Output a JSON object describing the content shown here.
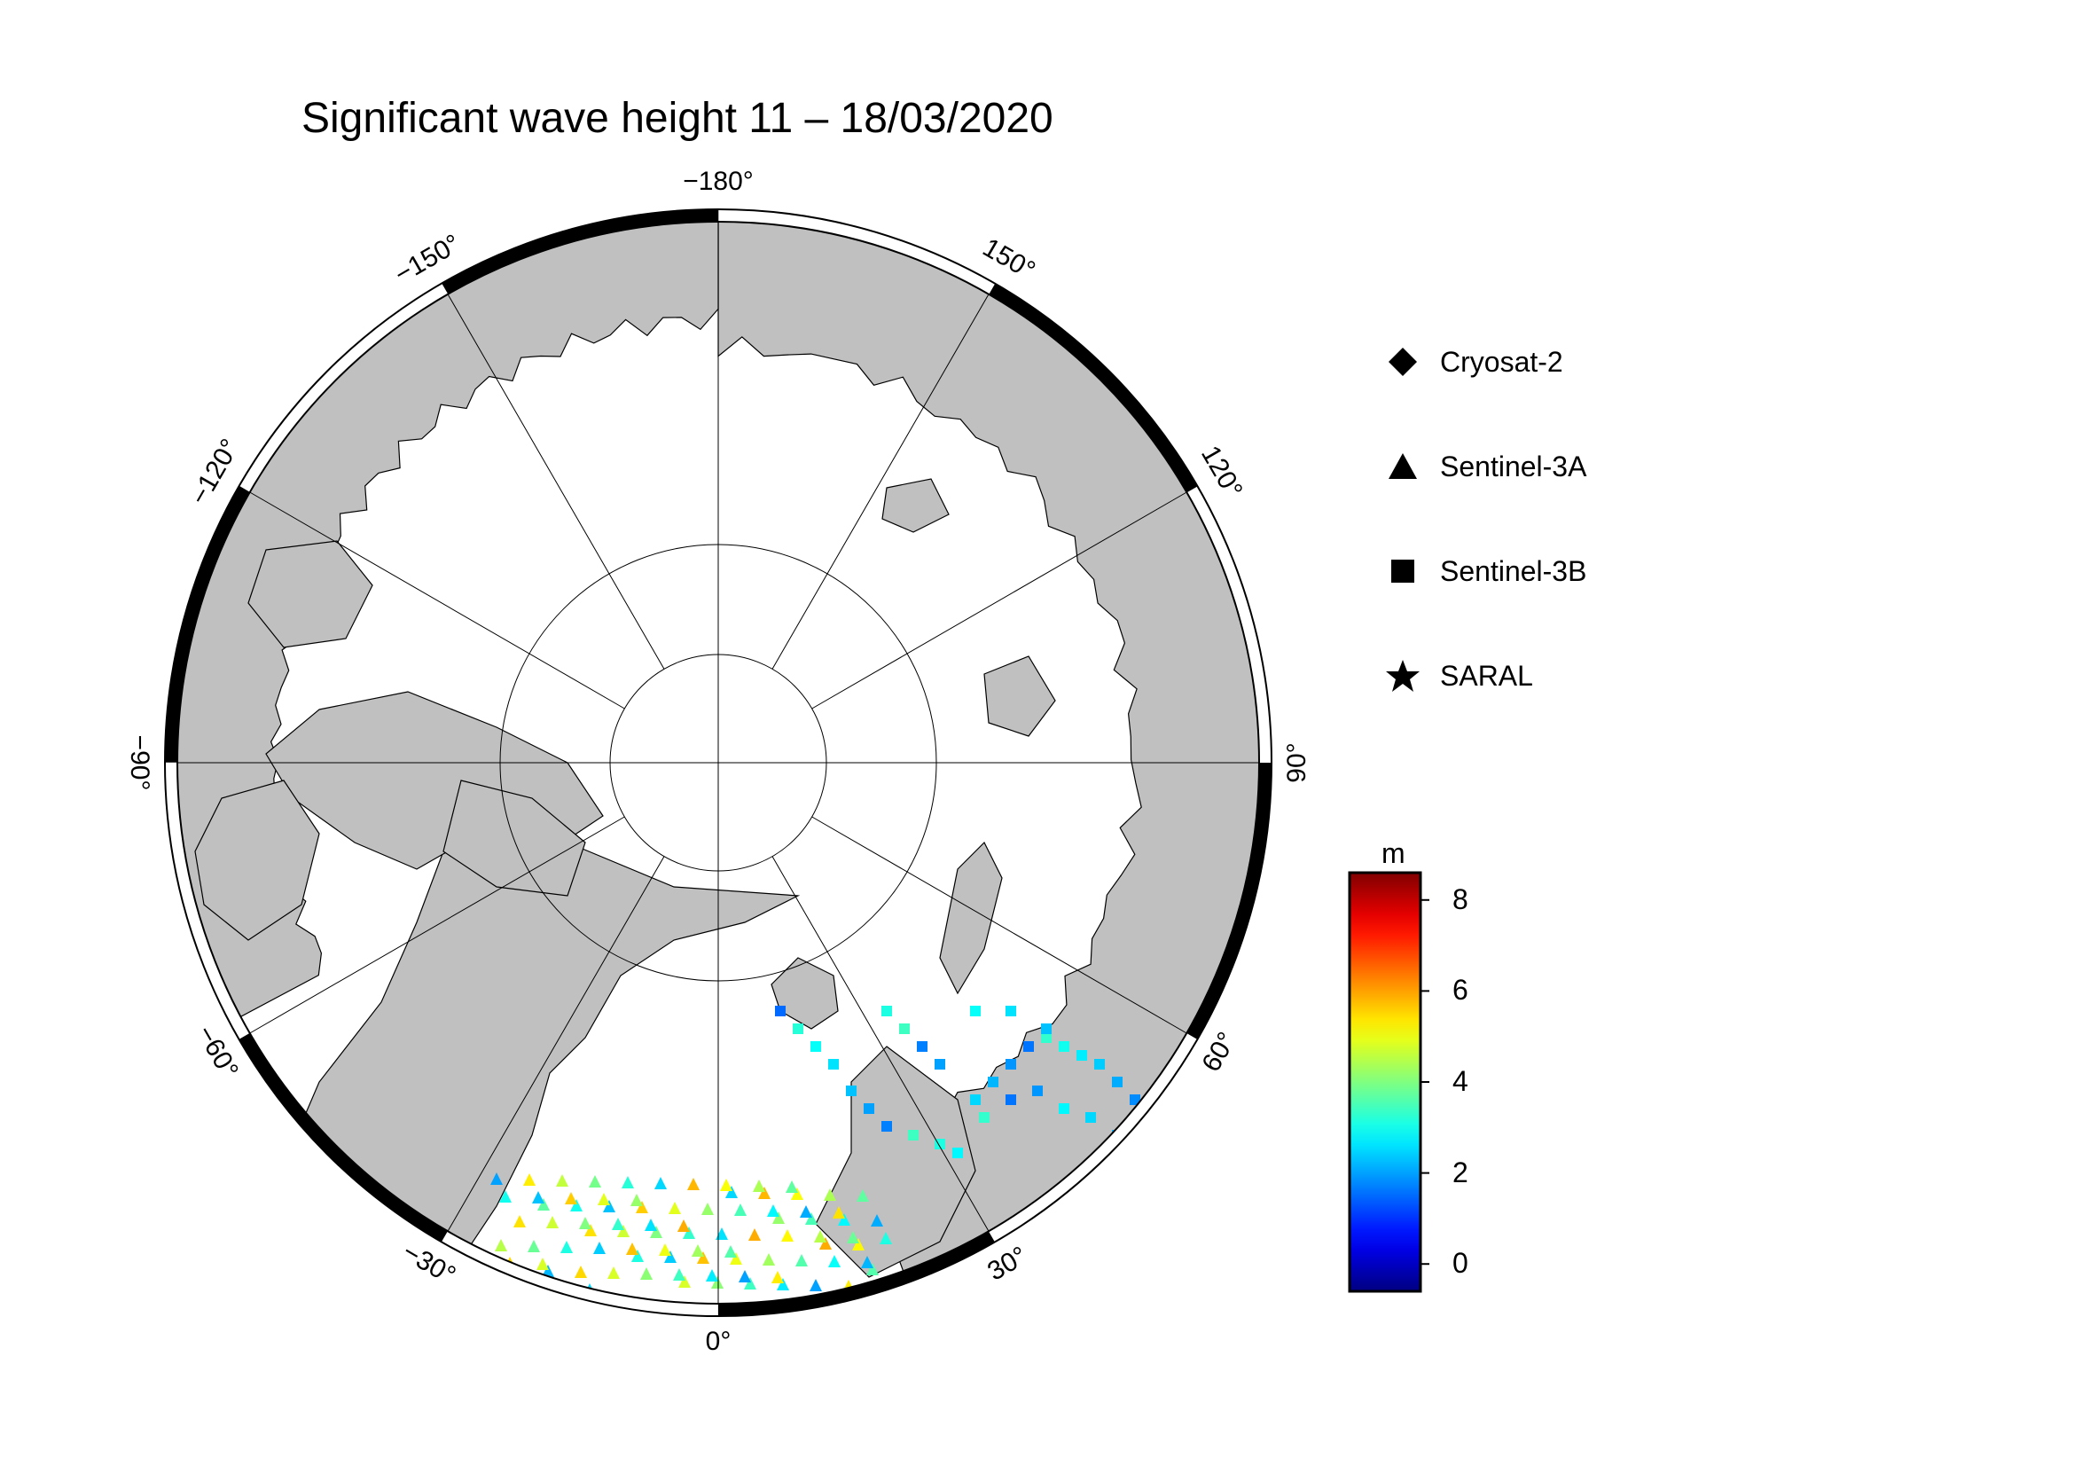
{
  "title": "Significant wave height 11 – 18/03/2020",
  "map": {
    "projection": "north polar stereographic",
    "land_color": "#c0c0c0",
    "sea_ice_color": "#ffffff",
    "longitude_labels": [
      {
        "lon": -180,
        "text": "−180°"
      },
      {
        "lon": -150,
        "text": "−150°"
      },
      {
        "lon": -120,
        "text": "−120°"
      },
      {
        "lon": -90,
        "text": "−90°"
      },
      {
        "lon": -60,
        "text": "−60°"
      },
      {
        "lon": -30,
        "text": "−30°"
      },
      {
        "lon": 0,
        "text": "0°"
      },
      {
        "lon": 30,
        "text": "30°"
      },
      {
        "lon": 60,
        "text": "60°"
      },
      {
        "lon": 90,
        "text": "90°"
      },
      {
        "lon": 120,
        "text": "120°"
      },
      {
        "lon": 150,
        "text": "150°"
      }
    ]
  },
  "legend": {
    "items": [
      {
        "symbol": "diamond-icon",
        "label": "Cryosat-2"
      },
      {
        "symbol": "triangle-icon",
        "label": "Sentinel-3A"
      },
      {
        "symbol": "square-icon",
        "label": "Sentinel-3B"
      },
      {
        "symbol": "star-icon",
        "label": "SARAL"
      }
    ]
  },
  "colorbar": {
    "unit": "m",
    "min": -0.6,
    "max": 8.6,
    "ticks": [
      {
        "value": 8,
        "label": "8"
      },
      {
        "value": 6,
        "label": "6"
      },
      {
        "value": 4,
        "label": "4"
      },
      {
        "value": 2,
        "label": "2"
      },
      {
        "value": 0,
        "label": "0"
      }
    ],
    "colormap": "jet"
  }
}
